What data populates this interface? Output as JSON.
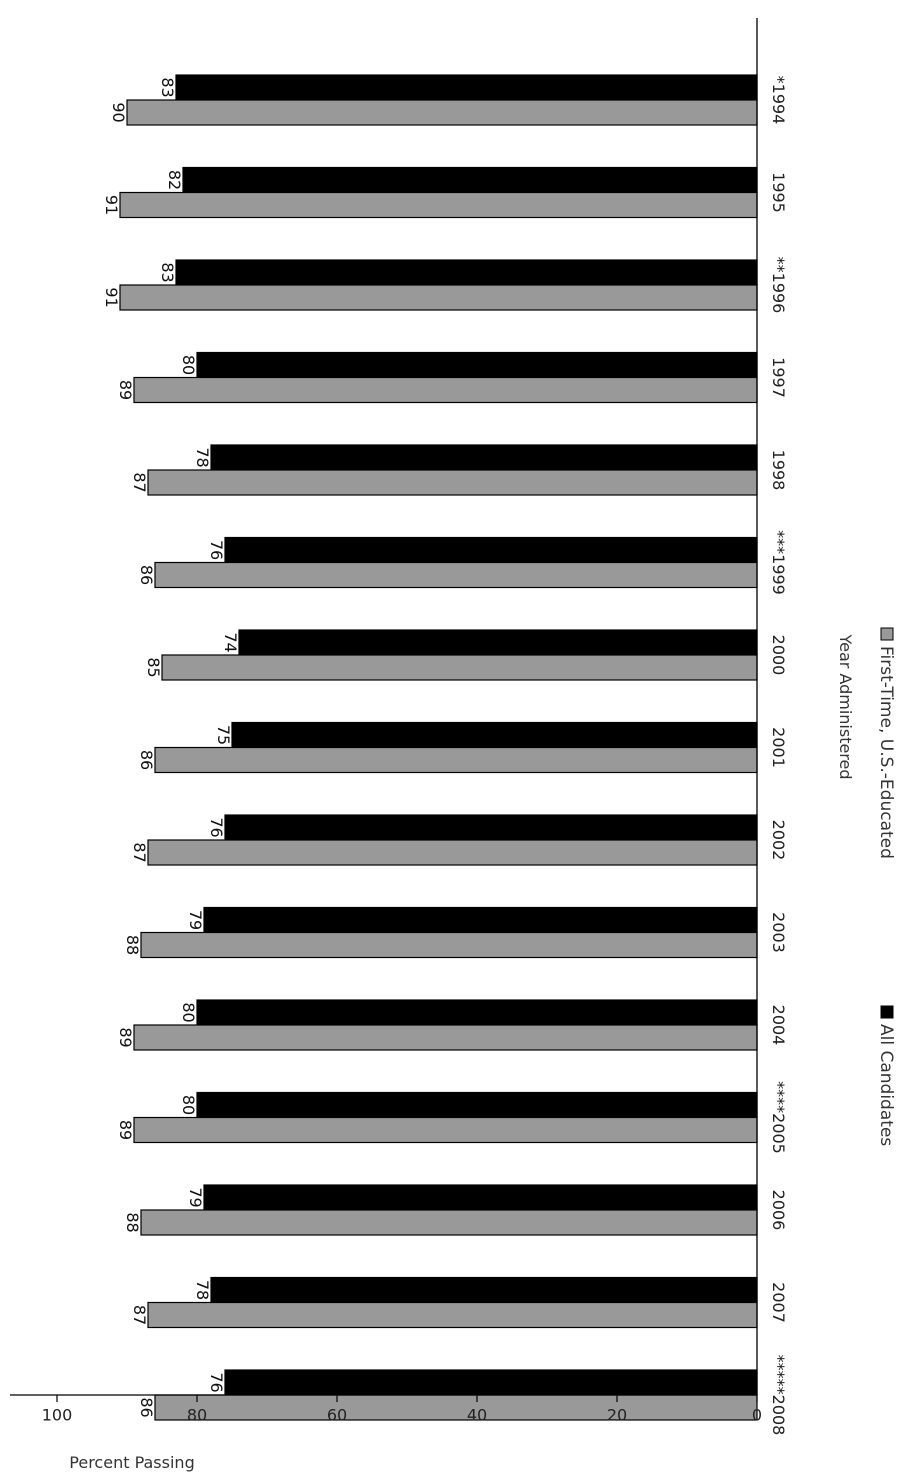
{
  "chart_data": {
    "type": "bar",
    "orientation": "rotated-90-clockwise",
    "categories": [
      "*1994",
      "1995",
      "**1996",
      "1997",
      "1998",
      "***1999",
      "2000",
      "2001",
      "2002",
      "2003",
      "2004",
      "****2005",
      "2006",
      "2007",
      "*****2008"
    ],
    "series": [
      {
        "name": "All Candidates",
        "color": "#000000",
        "values": [
          83,
          82,
          83,
          80,
          78,
          76,
          74,
          75,
          76,
          79,
          80,
          80,
          79,
          78,
          76
        ]
      },
      {
        "name": "First-Time, U.S.-Educated",
        "color": "#999999",
        "values": [
          90,
          91,
          91,
          89,
          87,
          86,
          85,
          86,
          87,
          88,
          89,
          89,
          88,
          87,
          86
        ]
      }
    ],
    "title": "",
    "xlabel": "Year Administered",
    "ylabel": "Percent Passing",
    "ylim": [
      0,
      100
    ],
    "yticks": [
      "0",
      "20",
      "40",
      "60",
      "80",
      "100"
    ],
    "grid": false,
    "legend_position": "bottom"
  }
}
